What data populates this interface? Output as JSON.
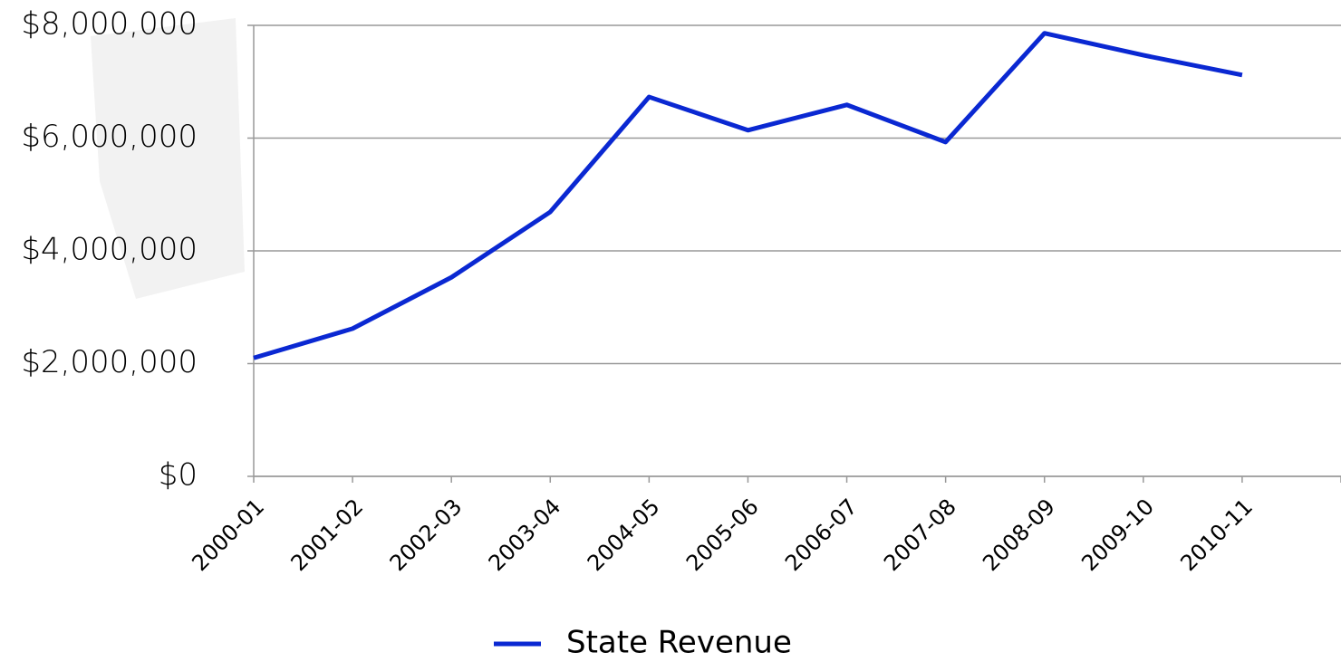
{
  "chart_data": {
    "type": "line",
    "categories": [
      "2000-01",
      "2001-02",
      "2002-03",
      "2003-04",
      "2004-05",
      "2005-06",
      "2006-07",
      "2007-08",
      "2008-09",
      "2009-10",
      "2010-11"
    ],
    "series": [
      {
        "name": "State Revenue",
        "color": "#0a28d2",
        "values": [
          2100000,
          2620000,
          3530000,
          4690000,
          6730000,
          6140000,
          6590000,
          5930000,
          7860000,
          7470000,
          7120000
        ]
      }
    ],
    "ylim": [
      0,
      8000000
    ],
    "yticks": [
      {
        "value": 0,
        "label": "$0"
      },
      {
        "value": 2000000,
        "label": "$2,000,000"
      },
      {
        "value": 4000000,
        "label": "$4,000,000"
      },
      {
        "value": 6000000,
        "label": "$6,000,000"
      },
      {
        "value": 8000000,
        "label": "$8,000,000"
      }
    ],
    "grid": true,
    "legend": "bottom"
  }
}
